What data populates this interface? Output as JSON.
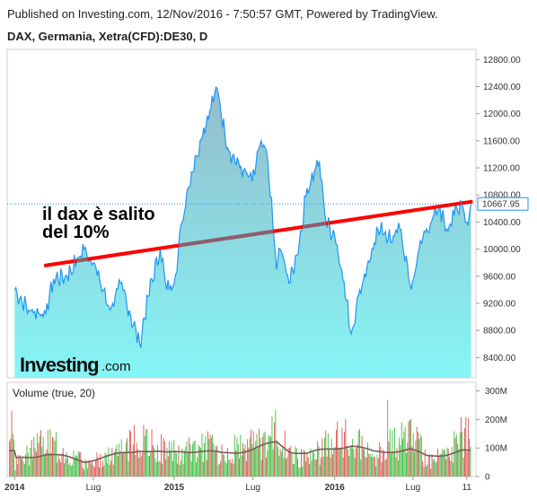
{
  "header": {
    "published": "Published on Investing.com, 12/Nov/2016 - 7:50:57 GMT, Powered by TradingView.",
    "symbol": "DAX, Germania, Xetra(CFD):DE30, D"
  },
  "colors": {
    "line": "#2196f3",
    "area_top": "#8fb8c8",
    "area_bottom": "#7ff5f5",
    "trend": "#ff0000",
    "trend_over_area": "#8a6070",
    "vol_up": "#3fbf3f",
    "vol_down": "#d9534f",
    "vol_ma": "#7a5a5a",
    "last_label_border": "#2196f3"
  },
  "logo": {
    "brand": "Investing",
    "suffix": ".com"
  },
  "chart_data": [
    {
      "type": "area",
      "title": "",
      "ylim": [
        8100,
        12950
      ],
      "y_ticks": [
        "12800.00",
        "12400.00",
        "12000.00",
        "11600.00",
        "11200.00",
        "10800.00",
        "10400.00",
        "10000.00",
        "9600.00",
        "9200.00",
        "8800.00",
        "8400.00"
      ],
      "last_value": 10667.95,
      "last_value_label": "10667.95",
      "x_ticks": [
        "2014",
        "Lug",
        "2015",
        "Lug",
        "2016",
        "Lug",
        "11"
      ],
      "x": [
        "2014-01-02",
        "2014-02-03",
        "2014-03-14",
        "2014-04-01",
        "2014-05-02",
        "2014-06-10",
        "2014-07-01",
        "2014-08-08",
        "2014-09-01",
        "2014-10-15",
        "2014-11-03",
        "2014-12-01",
        "2014-12-16",
        "2015-01-02",
        "2015-01-20",
        "2015-02-02",
        "2015-03-02",
        "2015-04-10",
        "2015-05-04",
        "2015-06-01",
        "2015-06-29",
        "2015-07-20",
        "2015-08-04",
        "2015-08-24",
        "2015-09-01",
        "2015-09-24",
        "2015-10-15",
        "2015-11-02",
        "2015-11-30",
        "2015-12-15",
        "2016-01-04",
        "2016-01-20",
        "2016-02-11",
        "2016-03-01",
        "2016-04-01",
        "2016-04-20",
        "2016-05-02",
        "2016-06-01",
        "2016-06-27",
        "2016-07-15",
        "2016-08-01",
        "2016-09-01",
        "2016-09-16",
        "2016-10-03",
        "2016-10-20",
        "2016-11-04",
        "2016-11-11"
      ],
      "series": [
        {
          "values": [
            9400,
            9100,
            9050,
            9560,
            9600,
            10000,
            9800,
            9100,
            9500,
            8600,
            9300,
            10000,
            9400,
            9500,
            10400,
            10900,
            11600,
            12380,
            11500,
            11200,
            11000,
            11600,
            11300,
            9700,
            10000,
            9500,
            10100,
            10900,
            11300,
            10400,
            10200,
            9700,
            8750,
            9400,
            10000,
            10400,
            10100,
            10300,
            9400,
            10000,
            10300,
            10600,
            10300,
            10500,
            10700,
            10350,
            10667.95
          ]
        }
      ],
      "annotation": "il dax è salito del 10%",
      "trendline": {
        "x": [
          "2014-03-14",
          "2016-11-11"
        ],
        "y": [
          9760,
          10700
        ]
      }
    },
    {
      "type": "bar",
      "title": "Volume (true, 20)",
      "ylim": [
        0,
        330
      ],
      "y_ticks": [
        "300M",
        "200M",
        "100M",
        "0"
      ],
      "volume_unit": "M",
      "x": [
        "2014-01-02",
        "2014-03-14",
        "2014-06-10",
        "2014-08-08",
        "2014-10-15",
        "2014-12-16",
        "2015-01-20",
        "2015-03-02",
        "2015-04-20",
        "2015-06-29",
        "2015-08-24",
        "2015-09-24",
        "2015-11-02",
        "2016-01-04",
        "2016-02-11",
        "2016-04-01",
        "2016-06-24",
        "2016-08-01",
        "2016-09-16",
        "2016-10-20",
        "2016-11-11"
      ],
      "values": [
        60,
        150,
        60,
        90,
        160,
        120,
        90,
        150,
        100,
        140,
        190,
        100,
        70,
        160,
        180,
        80,
        200,
        70,
        90,
        180,
        190
      ],
      "ma": [
        60,
        80,
        55,
        70,
        95,
        80,
        90,
        90,
        80,
        95,
        120,
        90,
        80,
        100,
        110,
        85,
        95,
        70,
        80,
        90,
        85
      ]
    }
  ]
}
